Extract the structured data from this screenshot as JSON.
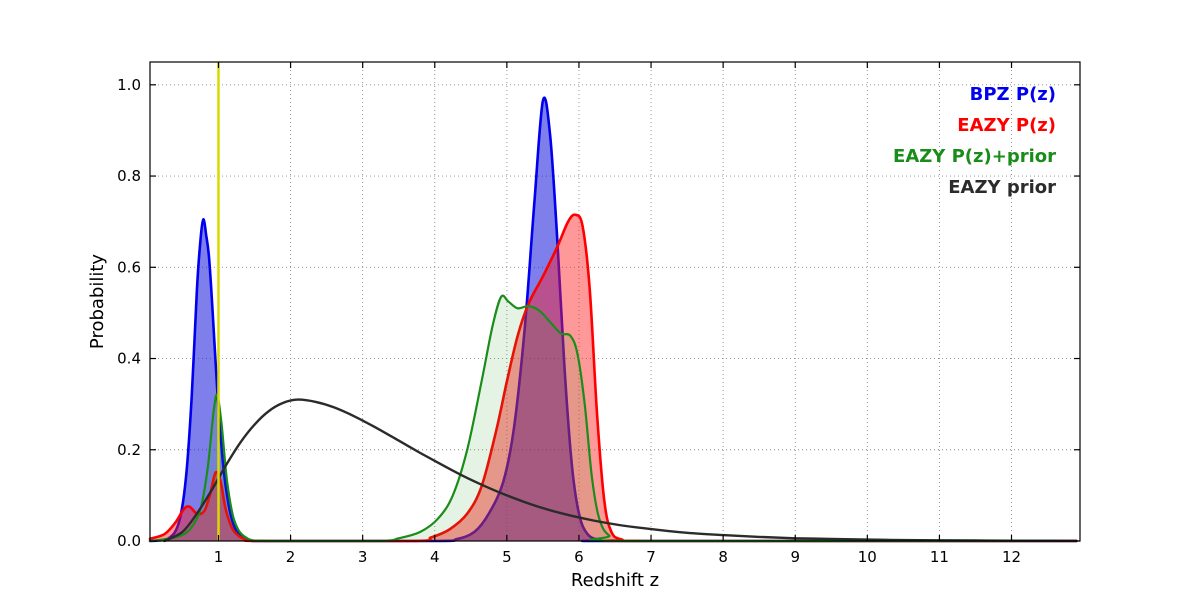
{
  "figure": {
    "background": "#ffffff"
  },
  "chart_data": {
    "type": "line",
    "title": "",
    "xlabel": "Redshift z",
    "ylabel": "Probability",
    "xlim": [
      0.05,
      12.95
    ],
    "ylim": [
      0,
      1.05
    ],
    "xticks": [
      1,
      2,
      3,
      4,
      5,
      6,
      7,
      8,
      9,
      10,
      11,
      12
    ],
    "xtick_labels": [
      "1",
      "2",
      "3",
      "4",
      "5",
      "6",
      "7",
      "8",
      "9",
      "10",
      "11",
      "12"
    ],
    "yticks": [
      0.0,
      0.2,
      0.4,
      0.6,
      0.8,
      1.0
    ],
    "ytick_labels": [
      "0.0",
      "0.2",
      "0.4",
      "0.6",
      "0.8",
      "1.0"
    ],
    "grid": true,
    "grid_style": "dotted",
    "legend_position": "upper right",
    "vline": {
      "x": 1.0,
      "color": "#d9d900",
      "lw": 2.5,
      "name": "spec-z-marker"
    },
    "series": [
      {
        "name": "BPZ P(z)",
        "color": "#0000ee",
        "fill": true,
        "fill_color": "#1515dd",
        "fill_opacity": 0.55,
        "lw": 2.6,
        "points": [
          [
            0.05,
            0.0
          ],
          [
            0.3,
            0.005
          ],
          [
            0.45,
            0.04
          ],
          [
            0.55,
            0.14
          ],
          [
            0.63,
            0.32
          ],
          [
            0.7,
            0.55
          ],
          [
            0.75,
            0.66
          ],
          [
            0.79,
            0.705
          ],
          [
            0.83,
            0.67
          ],
          [
            0.87,
            0.62
          ],
          [
            0.92,
            0.5
          ],
          [
            0.98,
            0.34
          ],
          [
            1.04,
            0.21
          ],
          [
            1.1,
            0.12
          ],
          [
            1.18,
            0.05
          ],
          [
            1.28,
            0.015
          ],
          [
            1.45,
            0.002
          ],
          [
            1.7,
            0.0
          ],
          [
            4.0,
            0.0
          ],
          [
            4.3,
            0.004
          ],
          [
            4.55,
            0.02
          ],
          [
            4.75,
            0.06
          ],
          [
            4.95,
            0.13
          ],
          [
            5.1,
            0.25
          ],
          [
            5.25,
            0.47
          ],
          [
            5.38,
            0.74
          ],
          [
            5.5,
            0.965
          ],
          [
            5.6,
            0.89
          ],
          [
            5.7,
            0.66
          ],
          [
            5.8,
            0.38
          ],
          [
            5.9,
            0.17
          ],
          [
            6.0,
            0.06
          ],
          [
            6.12,
            0.015
          ],
          [
            6.3,
            0.002
          ],
          [
            6.6,
            0.0
          ],
          [
            12.9,
            0.0
          ]
        ]
      },
      {
        "name": "EAZY P(z)",
        "color": "#ff0000",
        "fill": true,
        "fill_color": "#ff1a1a",
        "fill_opacity": 0.45,
        "lw": 2.6,
        "points": [
          [
            0.05,
            0.005
          ],
          [
            0.25,
            0.015
          ],
          [
            0.4,
            0.04
          ],
          [
            0.52,
            0.07
          ],
          [
            0.6,
            0.075
          ],
          [
            0.7,
            0.06
          ],
          [
            0.8,
            0.065
          ],
          [
            0.88,
            0.1
          ],
          [
            0.96,
            0.15
          ],
          [
            1.03,
            0.13
          ],
          [
            1.1,
            0.07
          ],
          [
            1.2,
            0.025
          ],
          [
            1.35,
            0.005
          ],
          [
            1.6,
            0.0
          ],
          [
            3.7,
            0.0
          ],
          [
            3.95,
            0.008
          ],
          [
            4.2,
            0.025
          ],
          [
            4.45,
            0.06
          ],
          [
            4.65,
            0.12
          ],
          [
            4.85,
            0.24
          ],
          [
            5.0,
            0.35
          ],
          [
            5.15,
            0.45
          ],
          [
            5.3,
            0.52
          ],
          [
            5.5,
            0.58
          ],
          [
            5.7,
            0.645
          ],
          [
            5.85,
            0.7
          ],
          [
            5.95,
            0.715
          ],
          [
            6.05,
            0.69
          ],
          [
            6.15,
            0.55
          ],
          [
            6.25,
            0.28
          ],
          [
            6.35,
            0.09
          ],
          [
            6.45,
            0.02
          ],
          [
            6.6,
            0.003
          ],
          [
            6.9,
            0.0
          ],
          [
            12.9,
            0.0
          ]
        ]
      },
      {
        "name": "EAZY P(z)+prior",
        "color": "#1a8c1a",
        "fill": true,
        "fill_color": "#2aa02a",
        "fill_opacity": 0.12,
        "lw": 2.2,
        "points": [
          [
            0.05,
            0.0
          ],
          [
            0.4,
            0.008
          ],
          [
            0.6,
            0.025
          ],
          [
            0.75,
            0.07
          ],
          [
            0.85,
            0.16
          ],
          [
            0.93,
            0.28
          ],
          [
            0.98,
            0.32
          ],
          [
            1.04,
            0.26
          ],
          [
            1.12,
            0.13
          ],
          [
            1.22,
            0.045
          ],
          [
            1.38,
            0.008
          ],
          [
            1.7,
            0.0
          ],
          [
            3.2,
            0.0
          ],
          [
            3.5,
            0.006
          ],
          [
            3.8,
            0.02
          ],
          [
            4.05,
            0.05
          ],
          [
            4.25,
            0.1
          ],
          [
            4.45,
            0.2
          ],
          [
            4.65,
            0.35
          ],
          [
            4.8,
            0.47
          ],
          [
            4.92,
            0.535
          ],
          [
            5.02,
            0.525
          ],
          [
            5.15,
            0.51
          ],
          [
            5.3,
            0.515
          ],
          [
            5.45,
            0.505
          ],
          [
            5.6,
            0.48
          ],
          [
            5.75,
            0.455
          ],
          [
            5.88,
            0.45
          ],
          [
            5.98,
            0.41
          ],
          [
            6.08,
            0.3
          ],
          [
            6.18,
            0.14
          ],
          [
            6.28,
            0.05
          ],
          [
            6.42,
            0.012
          ],
          [
            6.7,
            0.0
          ],
          [
            12.9,
            0.0
          ]
        ]
      },
      {
        "name": "EAZY prior",
        "color": "#2b2b2b",
        "fill": false,
        "fill_color": "#2b2b2b",
        "fill_opacity": 0,
        "lw": 2.4,
        "points": [
          [
            0.25,
            0.0
          ],
          [
            0.5,
            0.02
          ],
          [
            0.7,
            0.06
          ],
          [
            0.9,
            0.11
          ],
          [
            1.1,
            0.165
          ],
          [
            1.3,
            0.215
          ],
          [
            1.5,
            0.255
          ],
          [
            1.7,
            0.285
          ],
          [
            1.9,
            0.303
          ],
          [
            2.1,
            0.31
          ],
          [
            2.35,
            0.305
          ],
          [
            2.6,
            0.293
          ],
          [
            2.9,
            0.272
          ],
          [
            3.2,
            0.247
          ],
          [
            3.5,
            0.22
          ],
          [
            3.8,
            0.193
          ],
          [
            4.1,
            0.167
          ],
          [
            4.4,
            0.142
          ],
          [
            4.7,
            0.12
          ],
          [
            5.0,
            0.1
          ],
          [
            5.4,
            0.077
          ],
          [
            5.8,
            0.059
          ],
          [
            6.2,
            0.045
          ],
          [
            6.6,
            0.034
          ],
          [
            7.0,
            0.026
          ],
          [
            7.5,
            0.018
          ],
          [
            8.0,
            0.013
          ],
          [
            8.5,
            0.009
          ],
          [
            9.0,
            0.006
          ],
          [
            9.5,
            0.0045
          ],
          [
            10.0,
            0.003
          ],
          [
            10.5,
            0.002
          ],
          [
            11.0,
            0.0015
          ],
          [
            11.5,
            0.001
          ],
          [
            12.0,
            0.0007
          ],
          [
            12.9,
            0.0004
          ]
        ]
      }
    ]
  }
}
